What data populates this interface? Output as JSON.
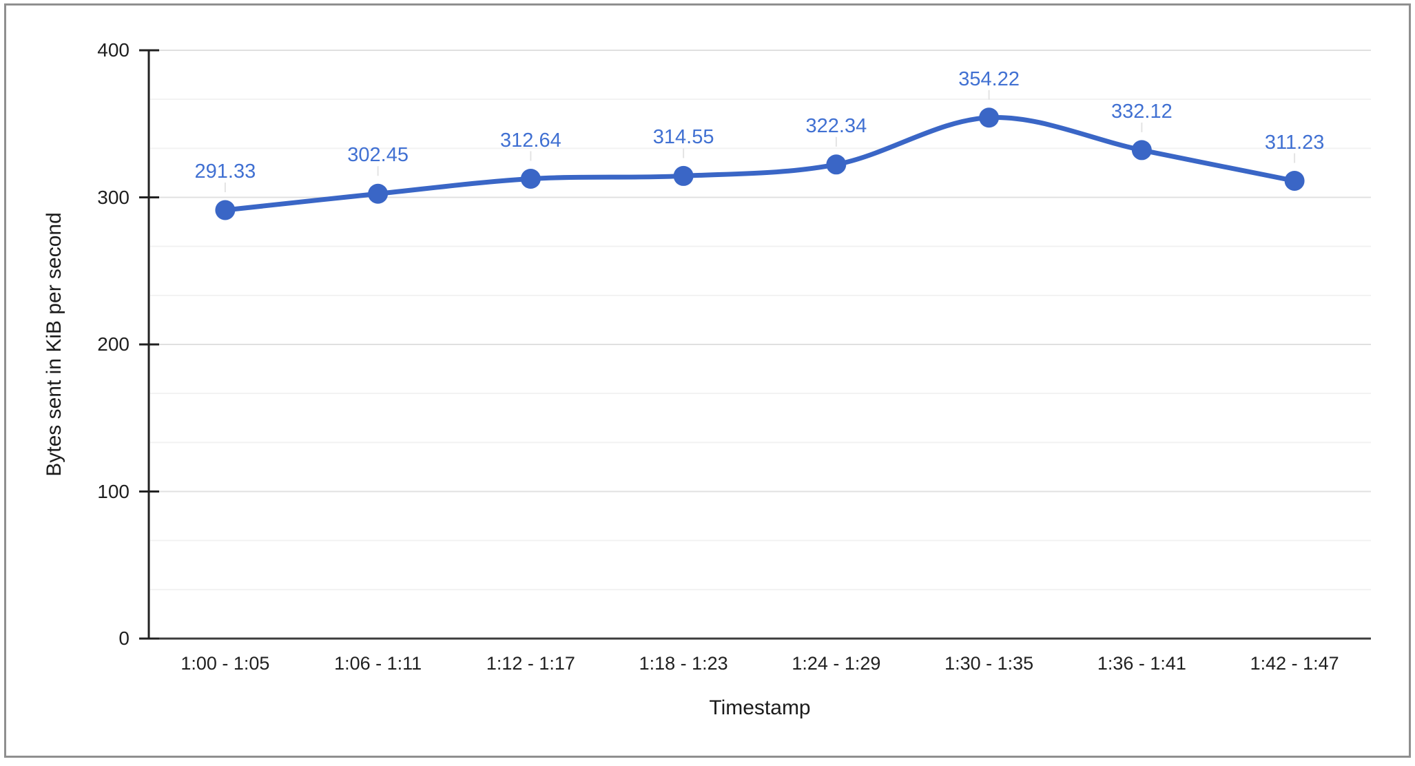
{
  "chart_data": {
    "type": "line",
    "title": "",
    "xlabel": "Timestamp",
    "ylabel": "Bytes sent in KiB per second",
    "categories": [
      "1:00 - 1:05",
      "1:06 - 1:11",
      "1:12 - 1:17",
      "1:18 - 1:23",
      "1:24 - 1:29",
      "1:30 - 1:35",
      "1:36 - 1:41",
      "1:42 - 1:47"
    ],
    "values": [
      291.33,
      302.45,
      312.64,
      314.55,
      322.34,
      354.22,
      332.12,
      311.23
    ],
    "data_labels": [
      "291.33",
      "302.45",
      "312.64",
      "314.55",
      "322.34",
      "354.22",
      "332.12",
      "311.23"
    ],
    "ylim": [
      0,
      400
    ],
    "yticks": [
      0,
      100,
      200,
      300,
      400
    ],
    "minor_gridlines_per_interval": 2,
    "grid": "major and minor horizontal gridlines",
    "legend": "none",
    "smooth": true,
    "colors": {
      "series": "#3a66c6",
      "data_label": "#4070d2",
      "axis": "#212121",
      "baseline": "#3c3c3c",
      "gridline_major": "#e0e0e0",
      "gridline_minor": "#f2f2f2",
      "leader": "#e3e3e3",
      "tick_label": "#1f1f1f",
      "frame_border": "#8f8f8f",
      "background": "#ffffff"
    }
  }
}
